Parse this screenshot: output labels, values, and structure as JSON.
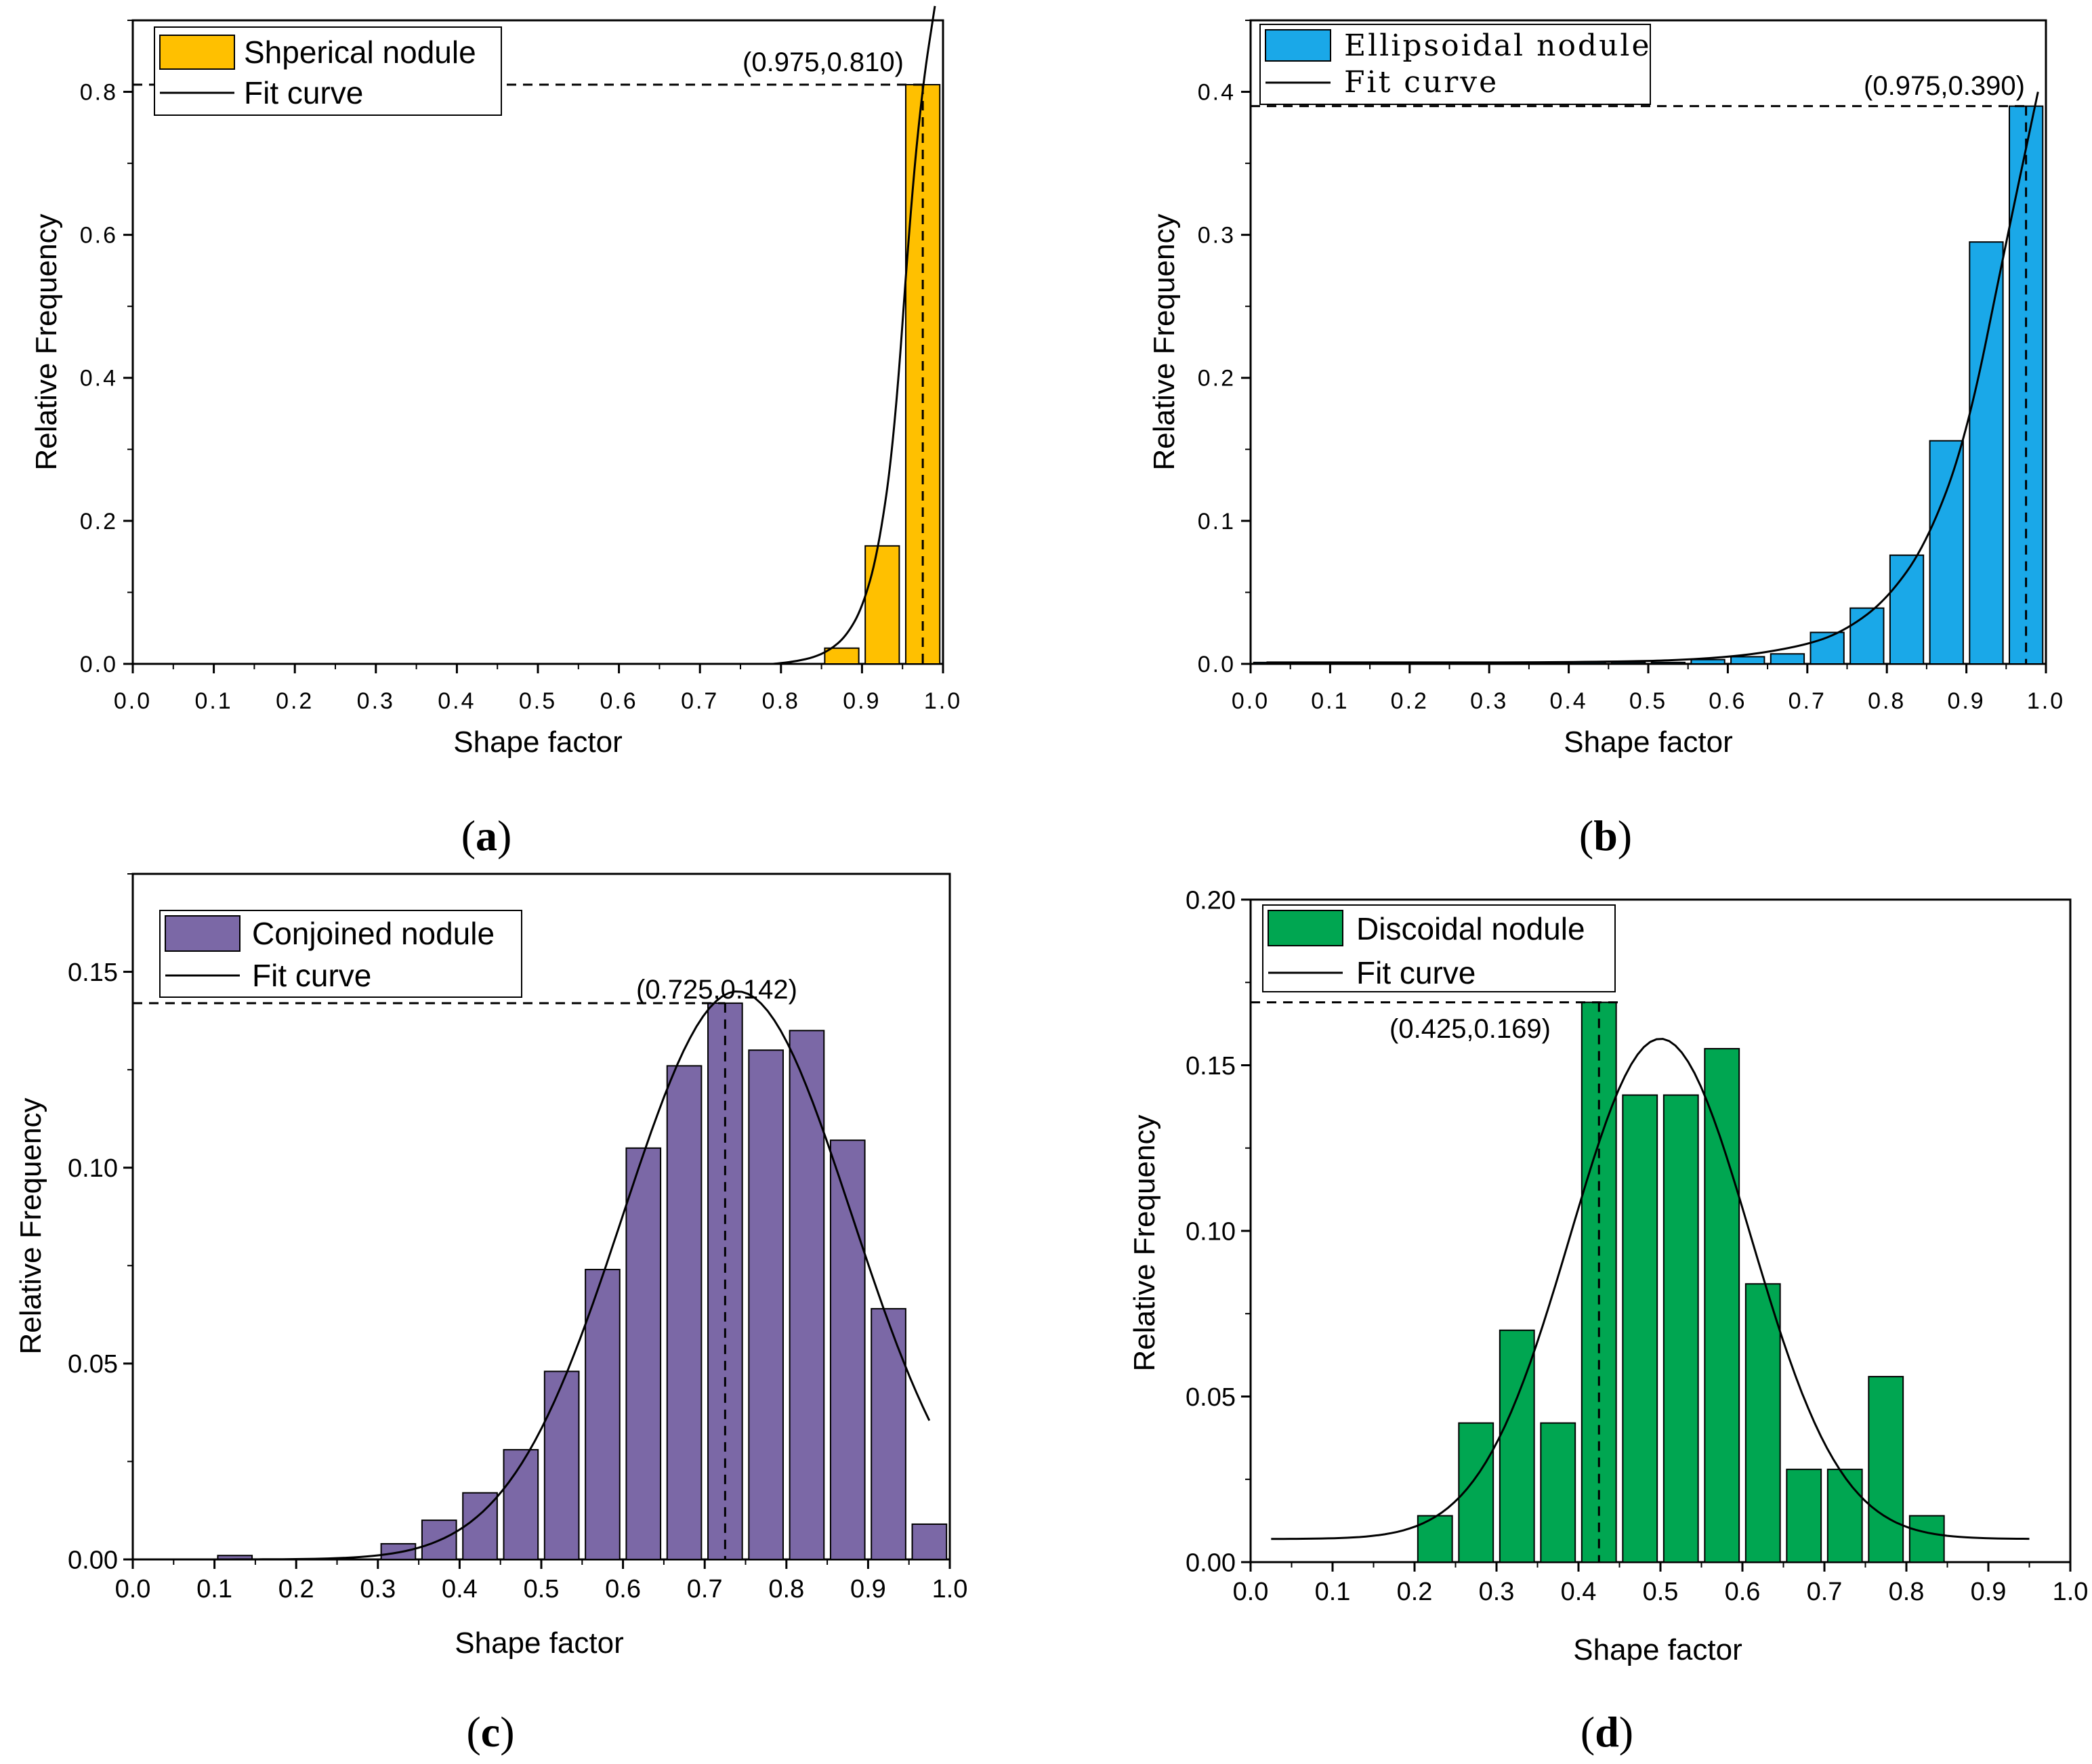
{
  "figure": {
    "panels": [
      {
        "label_open": "(",
        "label_letter": "a",
        "label_close": ")"
      },
      {
        "label_open": "(",
        "label_letter": "b",
        "label_close": ")"
      },
      {
        "label_open": "(",
        "label_letter": "c",
        "label_close": ")"
      },
      {
        "label_open": "(",
        "label_letter": "d",
        "label_close": ")"
      }
    ]
  },
  "chart_data": [
    {
      "type": "bar",
      "bar_color": "#FFC000",
      "xlabel": "Shape factor",
      "ylabel": "Relative Frequency",
      "xlim": [
        0.0,
        1.0
      ],
      "ylim": [
        0.0,
        0.9
      ],
      "xticks": [
        "0.0",
        "0.1",
        "0.2",
        "0.3",
        "0.4",
        "0.5",
        "0.6",
        "0.7",
        "0.8",
        "0.9",
        "1.0"
      ],
      "yticks": [
        "0.0",
        "0.2",
        "0.4",
        "0.6",
        "0.8"
      ],
      "bin_width": 0.05,
      "bins": [
        0.875,
        0.925,
        0.975
      ],
      "values": [
        0.022,
        0.165,
        0.81
      ],
      "legend": {
        "bar_label": "Shperical nodule",
        "line_label": "Fit curve"
      },
      "peak": {
        "x": 0.975,
        "y": 0.81,
        "label": "(0.975,0.810)"
      },
      "fit_curve": {
        "kind": "exponential",
        "x": [
          0.79,
          0.8,
          0.82,
          0.84,
          0.86,
          0.88,
          0.9,
          0.92,
          0.94,
          0.96,
          0.975,
          0.99
        ],
        "y": [
          0.0,
          0.001,
          0.004,
          0.009,
          0.019,
          0.038,
          0.077,
          0.157,
          0.316,
          0.638,
          0.81,
          0.92
        ]
      }
    },
    {
      "type": "bar",
      "bar_color": "#1AA8E8",
      "xlabel": "Shape factor",
      "ylabel": "Relative Frequency",
      "xlim": [
        0.0,
        1.0
      ],
      "ylim": [
        0.0,
        0.45
      ],
      "xticks": [
        "0.0",
        "0.1",
        "0.2",
        "0.3",
        "0.4",
        "0.5",
        "0.6",
        "0.7",
        "0.8",
        "0.9",
        "1.0"
      ],
      "yticks": [
        "0.0",
        "0.1",
        "0.2",
        "0.3",
        "0.4"
      ],
      "bin_width": 0.05,
      "bins": [
        0.025,
        0.075,
        0.125,
        0.175,
        0.225,
        0.275,
        0.325,
        0.375,
        0.425,
        0.475,
        0.525,
        0.575,
        0.625,
        0.675,
        0.725,
        0.775,
        0.825,
        0.875,
        0.925,
        0.975
      ],
      "values": [
        0.001,
        0.001,
        0.001,
        0.001,
        0.001,
        0.001,
        0.001,
        0.001,
        0.001,
        0.001,
        0.001,
        0.003,
        0.005,
        0.007,
        0.022,
        0.039,
        0.076,
        0.156,
        0.295,
        0.39
      ],
      "legend": {
        "bar_label": "Ellipsoidal nodule",
        "line_label": "Fit curve"
      },
      "peak": {
        "x": 0.975,
        "y": 0.39,
        "label": "(0.975,0.390)"
      },
      "fit_curve": {
        "kind": "exponential",
        "x": [
          0.02,
          0.45,
          0.6,
          0.7,
          0.75,
          0.8,
          0.85,
          0.9,
          0.95,
          0.99
        ],
        "y": [
          0.001,
          0.001,
          0.004,
          0.013,
          0.024,
          0.045,
          0.084,
          0.158,
          0.295,
          0.4
        ]
      }
    },
    {
      "type": "bar",
      "bar_color": "#7B68A6",
      "xlabel": "Shape factor",
      "ylabel": "Relative Frequency",
      "xlim": [
        0.0,
        1.0
      ],
      "ylim": [
        0.0,
        0.175
      ],
      "xticks": [
        "0.0",
        "0.1",
        "0.2",
        "0.3",
        "0.4",
        "0.5",
        "0.6",
        "0.7",
        "0.8",
        "0.9",
        "1.0"
      ],
      "yticks": [
        "0.00",
        "0.05",
        "0.10",
        "0.15"
      ],
      "bin_width": 0.05,
      "bins": [
        0.025,
        0.075,
        0.125,
        0.175,
        0.225,
        0.275,
        0.325,
        0.375,
        0.425,
        0.475,
        0.525,
        0.575,
        0.625,
        0.675,
        0.725,
        0.775,
        0.825,
        0.875,
        0.925,
        0.975
      ],
      "values": [
        0.0,
        0.0,
        0.001,
        0.0,
        0.0,
        0.0,
        0.004,
        0.01,
        0.017,
        0.028,
        0.048,
        0.074,
        0.105,
        0.126,
        0.142,
        0.13,
        0.135,
        0.107,
        0.064,
        0.009
      ],
      "legend": {
        "bar_label": "Conjoined nodule",
        "line_label": "Fit curve"
      },
      "peak": {
        "x": 0.725,
        "y": 0.142,
        "label": "(0.725,0.142)"
      },
      "fit_curve": {
        "kind": "gaussian",
        "x0": 0.025,
        "x1": 0.975,
        "mu": 0.74,
        "sigma": 0.14,
        "amp": 0.145,
        "offset": 0.0
      }
    },
    {
      "type": "bar",
      "bar_color": "#00A651",
      "xlabel": "Shape factor",
      "ylabel": "Relative Frequency",
      "xlim": [
        0.0,
        1.0
      ],
      "ylim": [
        0.0,
        0.2
      ],
      "xticks": [
        "0.0",
        "0.1",
        "0.2",
        "0.3",
        "0.4",
        "0.5",
        "0.6",
        "0.7",
        "0.8",
        "0.9",
        "1.0"
      ],
      "yticks": [
        "0.00",
        "0.05",
        "0.10",
        "0.15",
        "0.20"
      ],
      "bin_width": 0.05,
      "bins": [
        0.225,
        0.275,
        0.325,
        0.375,
        0.425,
        0.475,
        0.525,
        0.575,
        0.625,
        0.675,
        0.725,
        0.775,
        0.825
      ],
      "values": [
        0.014,
        0.042,
        0.07,
        0.042,
        0.169,
        0.141,
        0.141,
        0.155,
        0.084,
        0.028,
        0.028,
        0.056,
        0.014
      ],
      "legend": {
        "bar_label": "Discoidal nodule",
        "line_label": "Fit curve"
      },
      "peak": {
        "x": 0.425,
        "y": 0.169,
        "label": "(0.425,0.169)"
      },
      "fit_curve": {
        "kind": "gaussian",
        "x0": 0.025,
        "x1": 0.95,
        "mu": 0.5,
        "sigma": 0.11,
        "amp": 0.151,
        "offset": 0.007
      }
    }
  ]
}
